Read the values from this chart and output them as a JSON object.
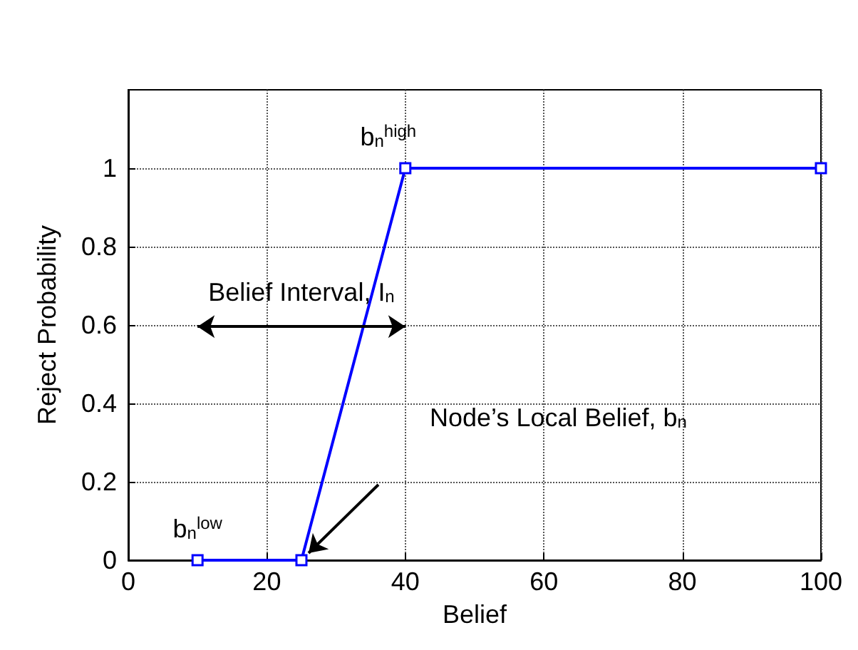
{
  "chart_data": {
    "type": "line",
    "xlabel": "Belief",
    "ylabel": "Reject Probability",
    "x": [
      10,
      25,
      40,
      100
    ],
    "series": [
      {
        "color": "#0000ff",
        "values": [
          0,
          0,
          1,
          1
        ]
      }
    ],
    "xlim": [
      0,
      100
    ],
    "xticks": [
      0,
      20,
      40,
      60,
      80,
      100
    ],
    "ylim": [
      0,
      1.2
    ],
    "yticks": [
      0,
      0.2,
      0.4,
      0.6,
      0.8,
      1
    ],
    "grid": true,
    "marker": "square",
    "line_style": "solid",
    "annotations": [
      {
        "text": "b$_{n}$$^{low}$",
        "x": 10,
        "y": 0
      },
      {
        "text": "b$_{n}$$^{high}$",
        "x": 40,
        "y": 1
      },
      "Belief Interval, I$_{n}$",
      "Node’s Local Belief, b$_{n}$"
    ]
  }
}
